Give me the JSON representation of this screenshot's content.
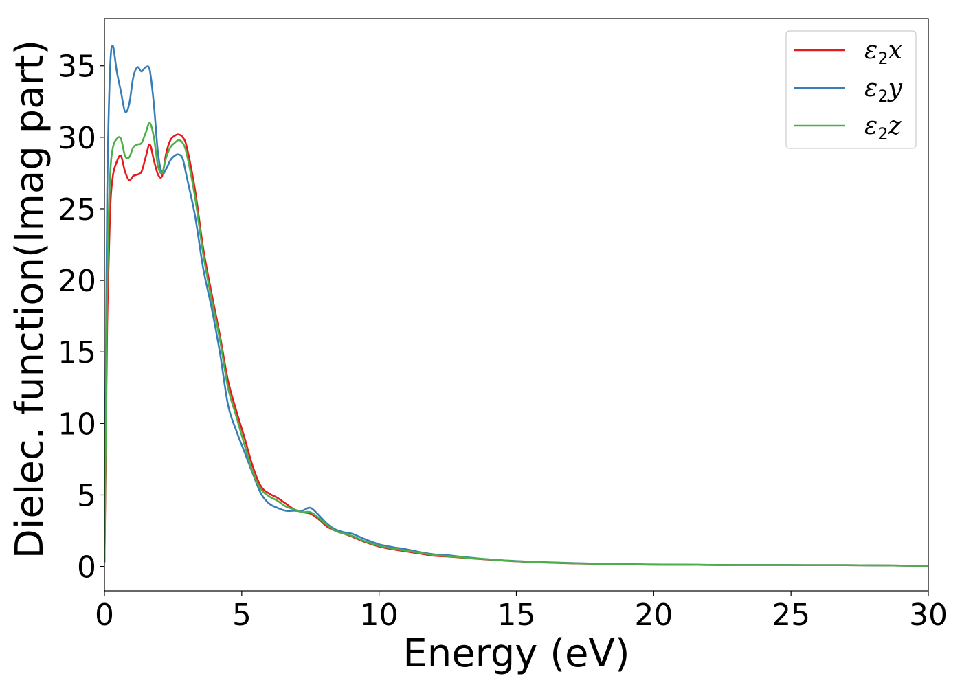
{
  "chart_data": {
    "type": "line",
    "title": "",
    "xlabel": "Energy (eV)",
    "ylabel": "Dielec. function(Imag part)",
    "xlim": [
      0,
      30
    ],
    "ylim": [
      -1.7,
      38.3
    ],
    "xticks": [
      0,
      5,
      10,
      15,
      20,
      25,
      30
    ],
    "yticks": [
      0,
      5,
      10,
      15,
      20,
      25,
      30,
      35
    ],
    "grid": false,
    "legend_position": "top-right",
    "series": [
      {
        "name": "ε2x",
        "legend": {
          "base": "ε",
          "sub": "2",
          "var": "x"
        },
        "color": "#e41a1c",
        "x": [
          0,
          0.05,
          0.1,
          0.2,
          0.3,
          0.45,
          0.6,
          0.75,
          0.9,
          1.05,
          1.2,
          1.35,
          1.5,
          1.65,
          1.8,
          1.95,
          2.1,
          2.25,
          2.4,
          2.55,
          2.7,
          2.85,
          3.0,
          3.3,
          3.6,
          3.9,
          4.2,
          4.5,
          4.8,
          5.1,
          5.4,
          5.7,
          6.0,
          6.3,
          6.6,
          6.9,
          7.2,
          7.5,
          7.8,
          8.1,
          8.4,
          8.7,
          9.0,
          9.5,
          10.0,
          10.5,
          11.0,
          11.5,
          12.0,
          12.5,
          13.0,
          14.0,
          15.0,
          16.0,
          17.0,
          18.0,
          19.0,
          20.0,
          21.0,
          22.0,
          23.0,
          24.0,
          25.0,
          26.0,
          27.0,
          28.0,
          29.0,
          30.0
        ],
        "y": [
          0.3,
          8.0,
          17.0,
          24.5,
          27.2,
          28.3,
          28.7,
          27.6,
          27.0,
          27.3,
          27.4,
          27.6,
          28.6,
          29.5,
          28.4,
          27.4,
          27.3,
          28.9,
          29.8,
          30.1,
          30.2,
          30.0,
          29.3,
          26.3,
          22.2,
          19.1,
          16.2,
          13.0,
          10.9,
          9.0,
          7.0,
          5.6,
          5.1,
          4.8,
          4.4,
          4.0,
          3.8,
          3.7,
          3.3,
          2.8,
          2.5,
          2.3,
          2.1,
          1.7,
          1.4,
          1.2,
          1.05,
          0.9,
          0.75,
          0.7,
          0.62,
          0.48,
          0.36,
          0.28,
          0.22,
          0.18,
          0.15,
          0.13,
          0.12,
          0.11,
          0.1,
          0.1,
          0.1,
          0.09,
          0.09,
          0.08,
          0.06,
          0.04
        ]
      },
      {
        "name": "ε2y",
        "legend": {
          "base": "ε",
          "sub": "2",
          "var": "y"
        },
        "color": "#377eb8",
        "x": [
          0,
          0.05,
          0.1,
          0.2,
          0.3,
          0.45,
          0.6,
          0.75,
          0.9,
          1.05,
          1.2,
          1.35,
          1.5,
          1.65,
          1.8,
          1.95,
          2.1,
          2.25,
          2.4,
          2.55,
          2.7,
          2.85,
          3.0,
          3.3,
          3.6,
          3.9,
          4.2,
          4.5,
          4.8,
          5.1,
          5.4,
          5.7,
          6.0,
          6.3,
          6.6,
          6.9,
          7.2,
          7.5,
          7.8,
          8.1,
          8.4,
          8.7,
          9.0,
          9.5,
          10.0,
          10.5,
          11.0,
          11.5,
          12.0,
          12.5,
          13.0,
          14.0,
          15.0,
          16.0,
          17.0,
          18.0,
          19.0,
          20.0,
          21.0,
          22.0,
          23.0,
          24.0,
          25.0,
          26.0,
          27.0,
          28.0,
          29.0,
          30.0
        ],
        "y": [
          0.3,
          13.0,
          26.0,
          34.5,
          36.4,
          34.6,
          33.2,
          31.8,
          32.3,
          34.2,
          34.9,
          34.6,
          34.9,
          34.7,
          32.3,
          28.9,
          27.5,
          27.8,
          28.4,
          28.7,
          28.8,
          28.5,
          27.2,
          24.5,
          20.8,
          18.1,
          15.0,
          11.3,
          9.5,
          8.0,
          6.5,
          5.1,
          4.4,
          4.1,
          3.9,
          3.9,
          3.9,
          4.1,
          3.6,
          3.0,
          2.6,
          2.4,
          2.3,
          1.9,
          1.55,
          1.35,
          1.2,
          1.0,
          0.85,
          0.78,
          0.68,
          0.5,
          0.38,
          0.3,
          0.24,
          0.19,
          0.16,
          0.14,
          0.12,
          0.11,
          0.1,
          0.1,
          0.1,
          0.09,
          0.09,
          0.08,
          0.06,
          0.04
        ]
      },
      {
        "name": "ε2z",
        "legend": {
          "base": "ε",
          "sub": "2",
          "var": "z"
        },
        "color": "#4daf4a",
        "x": [
          0,
          0.05,
          0.1,
          0.2,
          0.3,
          0.45,
          0.6,
          0.75,
          0.9,
          1.05,
          1.2,
          1.35,
          1.5,
          1.65,
          1.8,
          1.95,
          2.1,
          2.25,
          2.4,
          2.55,
          2.7,
          2.85,
          3.0,
          3.3,
          3.6,
          3.9,
          4.2,
          4.5,
          4.8,
          5.1,
          5.4,
          5.7,
          6.0,
          6.3,
          6.6,
          6.9,
          7.2,
          7.5,
          7.8,
          8.1,
          8.4,
          8.7,
          9.0,
          9.5,
          10.0,
          10.5,
          11.0,
          11.5,
          12.0,
          12.5,
          13.0,
          14.0,
          15.0,
          16.0,
          17.0,
          18.0,
          19.0,
          20.0,
          21.0,
          22.0,
          23.0,
          24.0,
          25.0,
          26.0,
          27.0,
          28.0,
          29.0,
          30.0
        ],
        "y": [
          0.3,
          10.0,
          20.0,
          27.0,
          29.2,
          29.9,
          29.9,
          28.7,
          28.6,
          29.3,
          29.5,
          29.6,
          30.3,
          31.0,
          30.0,
          28.0,
          27.5,
          28.6,
          29.3,
          29.6,
          29.8,
          29.6,
          28.8,
          25.8,
          21.8,
          18.7,
          15.9,
          12.5,
          10.5,
          8.5,
          6.6,
          5.4,
          4.9,
          4.6,
          4.2,
          4.0,
          3.8,
          3.8,
          3.4,
          2.9,
          2.5,
          2.3,
          2.15,
          1.75,
          1.45,
          1.25,
          1.1,
          0.95,
          0.8,
          0.72,
          0.64,
          0.5,
          0.37,
          0.29,
          0.23,
          0.18,
          0.15,
          0.13,
          0.12,
          0.11,
          0.1,
          0.1,
          0.1,
          0.09,
          0.09,
          0.08,
          0.06,
          0.04
        ]
      }
    ]
  }
}
